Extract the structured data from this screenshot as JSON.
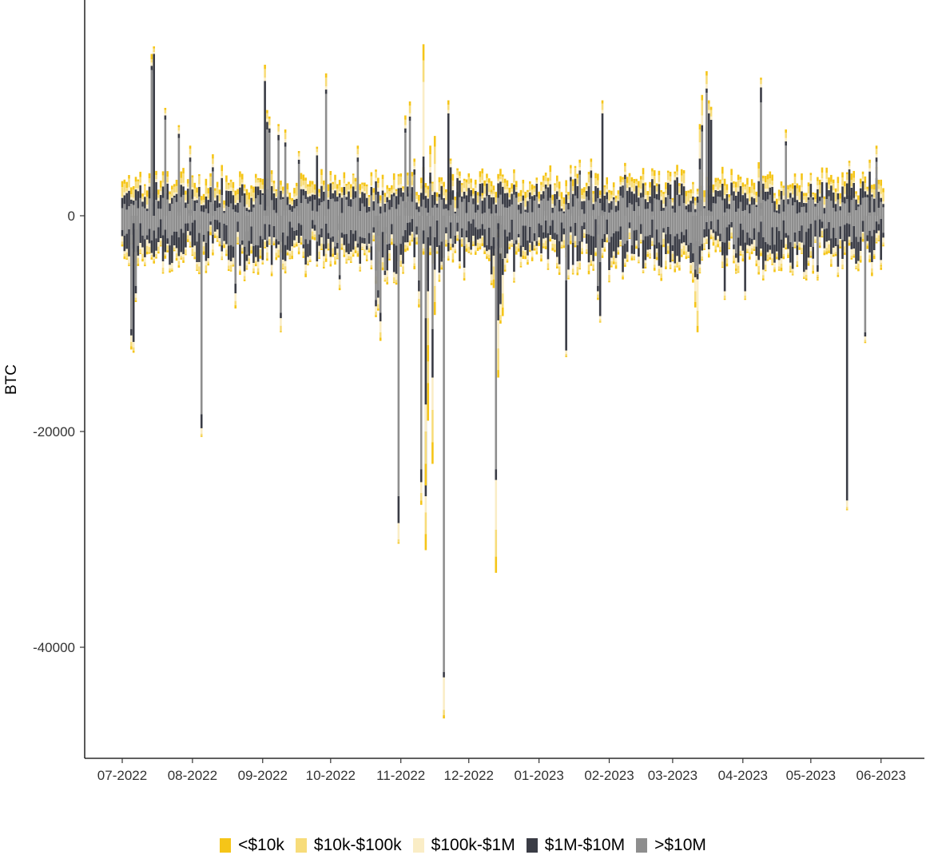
{
  "chart_data": {
    "type": "bar",
    "stacked": true,
    "title": "",
    "xlabel": "",
    "ylabel": "BTC",
    "xlim": [
      "2022-06-27",
      "2023-06-23"
    ],
    "ylim": [
      -50000,
      19500
    ],
    "y_ticks": [
      0,
      -20000,
      -40000
    ],
    "y_tick_labels": [
      "0",
      "-20000",
      "-40000"
    ],
    "x_ticks": [
      "2022-07-01",
      "2022-08-01",
      "2022-09-01",
      "2022-10-01",
      "2022-11-01",
      "2022-12-01",
      "2023-01-01",
      "2023-02-01",
      "2023-03-01",
      "2023-04-01",
      "2023-05-01",
      "2023-06-01"
    ],
    "x_tick_labels": [
      "07-2022",
      "08-2022",
      "09-2022",
      "10-2022",
      "11-2022",
      "12-2022",
      "01-2023",
      "02-2023",
      "03-2023",
      "04-2023",
      "05-2023",
      "06-2023"
    ],
    "grid": false,
    "legend_position": "bottom",
    "series_order": [
      "<$10k",
      "$10k-$100k",
      "$100k-$1M",
      "$1M-$10M",
      ">$10M"
    ],
    "series_colors": [
      "#f5c518",
      "#f7dc7a",
      "#faedc6",
      "#3a3c45",
      "#8e8e8e"
    ],
    "date_range": [
      "2022-07-01",
      "2023-06-02"
    ],
    "spikes": [
      {
        "date": "2022-07-05",
        "side": "neg",
        "values": [
          300,
          400,
          600,
          600,
          10500
        ]
      },
      {
        "date": "2022-07-06",
        "side": "neg",
        "values": [
          200,
          300,
          500,
          11000,
          700
        ]
      },
      {
        "date": "2022-07-07",
        "side": "neg",
        "values": [
          150,
          250,
          400,
          700,
          6500
        ]
      },
      {
        "date": "2022-07-14",
        "side": "pos",
        "values": [
          500,
          300,
          300,
          400,
          13500
        ]
      },
      {
        "date": "2022-07-15",
        "side": "pos",
        "values": [
          300,
          1000,
          400,
          400,
          13200
        ]
      },
      {
        "date": "2022-07-15",
        "side": "pos",
        "values": [
          200,
          300,
          200,
          15000,
          0
        ]
      },
      {
        "date": "2022-07-20",
        "side": "pos",
        "values": [
          200,
          300,
          200,
          400,
          8900
        ]
      },
      {
        "date": "2022-07-26",
        "side": "pos",
        "values": [
          200,
          300,
          300,
          400,
          7200
        ]
      },
      {
        "date": "2022-07-31",
        "side": "pos",
        "values": [
          300,
          500,
          300,
          400,
          5000
        ]
      },
      {
        "date": "2022-08-05",
        "side": "neg",
        "values": [
          100,
          200,
          500,
          1300,
          18400
        ]
      },
      {
        "date": "2022-08-10",
        "side": "pos",
        "values": [
          400,
          500,
          300,
          400,
          4100
        ]
      },
      {
        "date": "2022-08-20",
        "side": "neg",
        "values": [
          300,
          400,
          700,
          900,
          6300
        ]
      },
      {
        "date": "2022-08-25",
        "side": "neg",
        "values": [
          100,
          300,
          400,
          600,
          3600
        ]
      },
      {
        "date": "2022-09-02",
        "side": "pos",
        "values": [
          400,
          800,
          300,
          12000,
          500
        ]
      },
      {
        "date": "2022-09-03",
        "side": "pos",
        "values": [
          300,
          500,
          300,
          700,
          8000
        ]
      },
      {
        "date": "2022-09-04",
        "side": "pos",
        "values": [
          200,
          600,
          300,
          400,
          7700
        ]
      },
      {
        "date": "2022-09-08",
        "side": "pos",
        "values": [
          200,
          500,
          300,
          500,
          7000
        ]
      },
      {
        "date": "2022-09-09",
        "side": "neg",
        "values": [
          100,
          500,
          700,
          500,
          9000
        ]
      },
      {
        "date": "2022-09-11",
        "side": "pos",
        "values": [
          300,
          600,
          300,
          400,
          6400
        ]
      },
      {
        "date": "2022-09-17",
        "side": "pos",
        "values": [
          200,
          300,
          300,
          400,
          4800
        ]
      },
      {
        "date": "2022-09-25",
        "side": "pos",
        "values": [
          200,
          300,
          300,
          5200,
          400
        ]
      },
      {
        "date": "2022-09-29",
        "side": "pos",
        "values": [
          400,
          800,
          300,
          400,
          11300
        ]
      },
      {
        "date": "2022-10-05",
        "side": "neg",
        "values": [
          200,
          300,
          500,
          400,
          5500
        ]
      },
      {
        "date": "2022-10-13",
        "side": "pos",
        "values": [
          300,
          500,
          300,
          400,
          5000
        ]
      },
      {
        "date": "2022-10-21",
        "side": "neg",
        "values": [
          200,
          300,
          500,
          600,
          7800
        ]
      },
      {
        "date": "2022-10-22",
        "side": "neg",
        "values": [
          200,
          400,
          600,
          700,
          6900
        ]
      },
      {
        "date": "2022-10-23",
        "side": "neg",
        "values": [
          300,
          500,
          1000,
          800,
          9000
        ]
      },
      {
        "date": "2022-10-25",
        "side": "neg",
        "values": [
          100,
          200,
          300,
          400,
          5100
        ]
      },
      {
        "date": "2022-10-31",
        "side": "neg",
        "values": [
          100,
          300,
          1500,
          2500,
          26000
        ]
      },
      {
        "date": "2022-11-03",
        "side": "pos",
        "values": [
          400,
          500,
          300,
          400,
          7700
        ]
      },
      {
        "date": "2022-11-05",
        "side": "pos",
        "values": [
          400,
          700,
          300,
          400,
          8800
        ]
      },
      {
        "date": "2022-11-07",
        "side": "pos",
        "values": [
          300,
          400,
          300,
          500,
          3800
        ]
      },
      {
        "date": "2022-11-09",
        "side": "neg",
        "values": [
          300,
          500,
          700,
          1000,
          6000
        ]
      },
      {
        "date": "2022-11-10",
        "side": "neg",
        "values": [
          400,
          700,
          1000,
          1200,
          23500
        ]
      },
      {
        "date": "2022-11-11",
        "side": "pos",
        "values": [
          1500,
          2000,
          6900,
          4000,
          1500
        ]
      },
      {
        "date": "2022-11-12",
        "side": "neg",
        "values": [
          1500,
          2000,
          1500,
          6000,
          20000
        ]
      },
      {
        "date": "2022-11-12",
        "side": "neg",
        "values": [
          2000,
          3000,
          2500,
          8000,
          9500
        ]
      },
      {
        "date": "2022-11-13",
        "side": "neg",
        "values": [
          3500,
          6000,
          3500,
          4500,
          1500
        ]
      },
      {
        "date": "2022-11-13",
        "side": "neg",
        "values": [
          1500,
          2500,
          2500,
          5000,
          2000
        ]
      },
      {
        "date": "2022-11-14",
        "side": "pos",
        "values": [
          800,
          1200,
          500,
          1000,
          3000
        ]
      },
      {
        "date": "2022-11-15",
        "side": "neg",
        "values": [
          2000,
          3000,
          3000,
          4500,
          10500
        ]
      },
      {
        "date": "2022-11-16",
        "side": "pos",
        "values": [
          1000,
          1600,
          2600,
          1200,
          1000
        ]
      },
      {
        "date": "2022-11-16",
        "side": "neg",
        "values": [
          1200,
          1500,
          1500,
          3000,
          2000
        ]
      },
      {
        "date": "2022-11-20",
        "side": "neg",
        "values": [
          300,
          500,
          3000,
          500,
          42300
        ]
      },
      {
        "date": "2022-11-22",
        "side": "pos",
        "values": [
          400,
          500,
          300,
          9000,
          500
        ]
      },
      {
        "date": "2022-11-23",
        "side": "pos",
        "values": [
          200,
          300,
          300,
          3500,
          1000
        ]
      },
      {
        "date": "2022-11-26",
        "side": "pos",
        "values": [
          200,
          400,
          300,
          2800,
          700
        ]
      },
      {
        "date": "2022-12-04",
        "side": "pos",
        "values": [
          200,
          300,
          300,
          2000,
          300
        ]
      },
      {
        "date": "2022-12-07",
        "side": "pos",
        "values": [
          200,
          300,
          200,
          1200,
          200
        ]
      },
      {
        "date": "2022-12-11",
        "side": "pos",
        "values": [
          200,
          200,
          300,
          1500,
          200
        ]
      },
      {
        "date": "2022-12-12",
        "side": "neg",
        "values": [
          800,
          1200,
          1000,
          1700,
          2000
        ]
      },
      {
        "date": "2022-12-13",
        "side": "neg",
        "values": [
          1500,
          2500,
          4600,
          1000,
          23500
        ]
      },
      {
        "date": "2022-12-14",
        "side": "neg",
        "values": [
          700,
          2000,
          2600,
          9000,
          700
        ]
      },
      {
        "date": "2022-12-15",
        "side": "neg",
        "values": [
          300,
          500,
          1000,
          4700,
          3500
        ]
      },
      {
        "date": "2022-12-16",
        "side": "neg",
        "values": [
          800,
          1300,
          1700,
          1500,
          4000
        ]
      },
      {
        "date": "2023-01-04",
        "side": "pos",
        "values": [
          300,
          500,
          300,
          400,
          2500
        ]
      },
      {
        "date": "2023-01-13",
        "side": "neg",
        "values": [
          100,
          200,
          300,
          6500,
          6000
        ]
      },
      {
        "date": "2023-01-15",
        "side": "pos",
        "values": [
          300,
          500,
          300,
          400,
          3200
        ]
      },
      {
        "date": "2023-01-19",
        "side": "pos",
        "values": [
          300,
          400,
          300,
          400,
          3800
        ]
      },
      {
        "date": "2023-01-24",
        "side": "pos",
        "values": [
          300,
          500,
          300,
          700,
          3500
        ]
      },
      {
        "date": "2023-01-27",
        "side": "neg",
        "values": [
          200,
          300,
          300,
          500,
          6500
        ]
      },
      {
        "date": "2023-01-28",
        "side": "neg",
        "values": [
          100,
          200,
          300,
          5000,
          4300
        ]
      },
      {
        "date": "2023-01-29",
        "side": "pos",
        "values": [
          300,
          600,
          300,
          9000,
          500
        ]
      },
      {
        "date": "2023-02-08",
        "side": "pos",
        "values": [
          300,
          500,
          300,
          400,
          3400
        ]
      },
      {
        "date": "2023-02-14",
        "side": "neg",
        "values": [
          100,
          200,
          300,
          800,
          3000
        ]
      },
      {
        "date": "2023-02-20",
        "side": "pos",
        "values": [
          300,
          400,
          300,
          3000,
          400
        ]
      },
      {
        "date": "2023-03-02",
        "side": "pos",
        "values": [
          200,
          300,
          300,
          3000,
          300
        ]
      },
      {
        "date": "2023-03-10",
        "side": "neg",
        "values": [
          300,
          600,
          1000,
          800,
          3500
        ]
      },
      {
        "date": "2023-03-11",
        "side": "neg",
        "values": [
          500,
          1000,
          1300,
          700,
          5000
        ]
      },
      {
        "date": "2023-03-12",
        "side": "neg",
        "values": [
          600,
          1400,
          2900,
          500,
          5400
        ]
      },
      {
        "date": "2023-03-13",
        "side": "pos",
        "values": [
          500,
          1200,
          1500,
          1000,
          4300
        ]
      },
      {
        "date": "2023-03-14",
        "side": "pos",
        "values": [
          500,
          1400,
          900,
          600,
          7800
        ]
      },
      {
        "date": "2023-03-16",
        "side": "pos",
        "values": [
          400,
          800,
          400,
          400,
          11400
        ]
      },
      {
        "date": "2023-03-17",
        "side": "pos",
        "values": [
          300,
          600,
          300,
          9000,
          500
        ]
      },
      {
        "date": "2023-03-18",
        "side": "pos",
        "values": [
          300,
          600,
          300,
          8500,
          400
        ]
      },
      {
        "date": "2023-03-24",
        "side": "neg",
        "values": [
          100,
          300,
          400,
          4500,
          2500
        ]
      },
      {
        "date": "2023-03-29",
        "side": "neg",
        "values": [
          200,
          400,
          600,
          400,
          3500
        ]
      },
      {
        "date": "2023-04-02",
        "side": "neg",
        "values": [
          100,
          300,
          400,
          4500,
          2500
        ]
      },
      {
        "date": "2023-04-09",
        "side": "pos",
        "values": [
          200,
          400,
          300,
          1400,
          10500
        ]
      },
      {
        "date": "2023-04-10",
        "side": "neg",
        "values": [
          200,
          300,
          500,
          3000,
          2000
        ]
      },
      {
        "date": "2023-04-20",
        "side": "pos",
        "values": [
          300,
          500,
          300,
          400,
          6500
        ]
      },
      {
        "date": "2023-04-29",
        "side": "neg",
        "values": [
          200,
          300,
          500,
          3500,
          1500
        ]
      },
      {
        "date": "2023-05-04",
        "side": "neg",
        "values": [
          100,
          200,
          300,
          600,
          4600
        ]
      },
      {
        "date": "2023-05-17",
        "side": "neg",
        "values": [
          100,
          200,
          600,
          25700,
          700
        ]
      },
      {
        "date": "2023-05-18",
        "side": "pos",
        "values": [
          200,
          300,
          300,
          4000,
          300
        ]
      },
      {
        "date": "2023-05-25",
        "side": "neg",
        "values": [
          100,
          200,
          300,
          400,
          10800
        ]
      },
      {
        "date": "2023-05-27",
        "side": "pos",
        "values": [
          300,
          500,
          300,
          3800,
          300
        ]
      },
      {
        "date": "2023-05-30",
        "side": "pos",
        "values": [
          300,
          500,
          300,
          400,
          5000
        ]
      },
      {
        "date": "2023-06-01",
        "side": "neg",
        "values": [
          100,
          200,
          300,
          3800,
          300
        ]
      }
    ]
  },
  "legend": {
    "items": [
      {
        "label": "<$10k",
        "color": "#f5c518"
      },
      {
        "label": "$10k-$100k",
        "color": "#f7dc7a"
      },
      {
        "label": "$100k-$1M",
        "color": "#faedc6"
      },
      {
        "label": "$1M-$10M",
        "color": "#3a3c45"
      },
      {
        "label": ">$10M",
        "color": "#8e8e8e"
      }
    ]
  }
}
